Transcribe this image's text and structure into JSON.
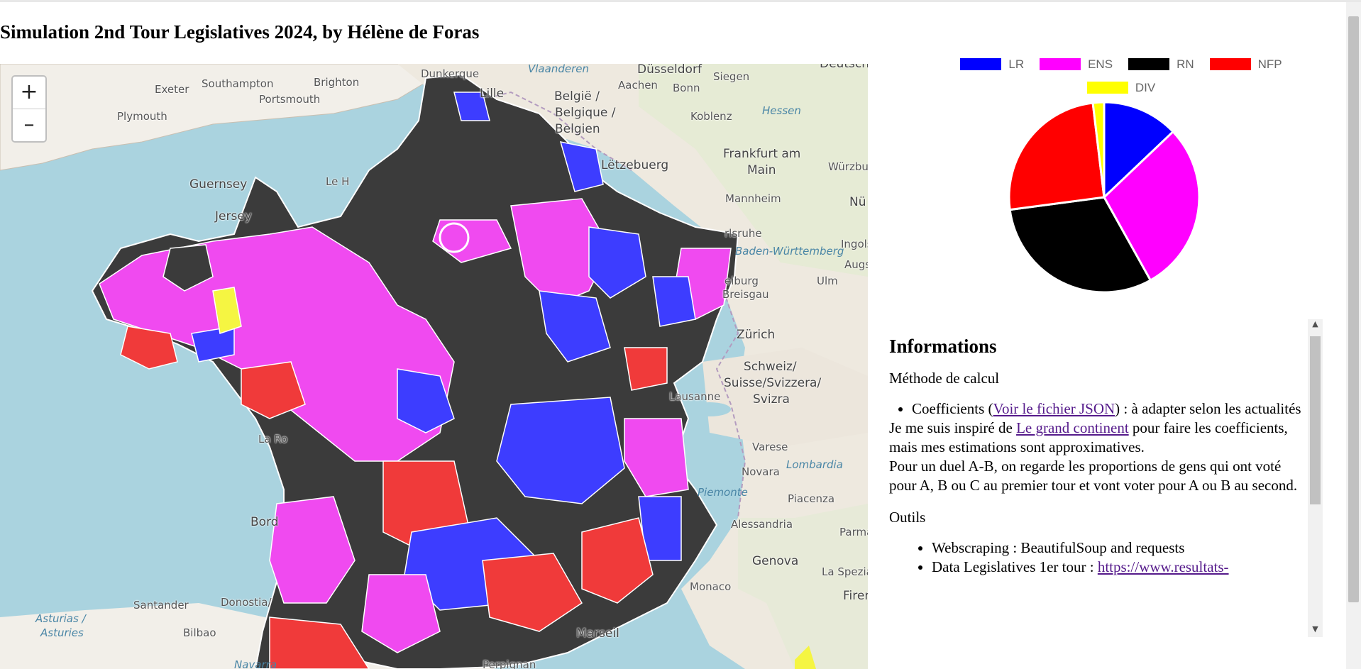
{
  "page": {
    "title": "Simulation 2nd Tour Legislatives 2024, by Hélène de Foras"
  },
  "map": {
    "zoom_in": "+",
    "zoom_out": "–",
    "labels": [
      {
        "id": "vlaanderen",
        "text": "Vlaanderen"
      },
      {
        "id": "dusseldorf",
        "text": "Düsseldorf"
      },
      {
        "id": "deutschland",
        "text": "Deutsch"
      },
      {
        "id": "exeter",
        "text": "Exeter"
      },
      {
        "id": "southampton",
        "text": "Southampton"
      },
      {
        "id": "brighton",
        "text": "Brighton"
      },
      {
        "id": "dunkerque",
        "text": "Dunkerque"
      },
      {
        "id": "lille",
        "text": "Lille"
      },
      {
        "id": "belgie",
        "text": "België /"
      },
      {
        "id": "belgique",
        "text": "Belgique /"
      },
      {
        "id": "belgien",
        "text": "Belgien"
      },
      {
        "id": "aachen",
        "text": "Aachen"
      },
      {
        "id": "bonn",
        "text": "Bonn"
      },
      {
        "id": "siegen",
        "text": "Siegen"
      },
      {
        "id": "portsmouth",
        "text": "Portsmouth"
      },
      {
        "id": "plymouth",
        "text": "Plymouth"
      },
      {
        "id": "koblenz",
        "text": "Koblenz"
      },
      {
        "id": "hessen",
        "text": "Hessen"
      },
      {
        "id": "letzebuerg",
        "text": "Lëtzebuerg"
      },
      {
        "id": "frankfurt1",
        "text": "Frankfurt am"
      },
      {
        "id": "frankfurt2",
        "text": "Main"
      },
      {
        "id": "wurzburg",
        "text": "Würzburg"
      },
      {
        "id": "guernsey",
        "text": "Guernsey"
      },
      {
        "id": "lehavre",
        "text": "Le H"
      },
      {
        "id": "jersey",
        "text": "Jersey"
      },
      {
        "id": "mannheim",
        "text": "Mannheim"
      },
      {
        "id": "nu",
        "text": "Nü"
      },
      {
        "id": "karlsruhe",
        "text": "rlsruhe"
      },
      {
        "id": "badenw",
        "text": "Baden-Württemberg"
      },
      {
        "id": "ingolstadt",
        "text": "Ingols"
      },
      {
        "id": "augsburg",
        "text": "Augs"
      },
      {
        "id": "freiburg1",
        "text": "eiburg"
      },
      {
        "id": "freiburg2",
        "text": "Breisgau"
      },
      {
        "id": "ulm",
        "text": "Ulm"
      },
      {
        "id": "zurich",
        "text": "Zürich"
      },
      {
        "id": "schweiz1",
        "text": "Schweiz/"
      },
      {
        "id": "schweiz2",
        "text": "Suisse/Svizzera/"
      },
      {
        "id": "schweiz3",
        "text": "Svizra"
      },
      {
        "id": "lausanne",
        "text": "Lausanne"
      },
      {
        "id": "varese",
        "text": "Varese"
      },
      {
        "id": "novara",
        "text": "Novara"
      },
      {
        "id": "lombardia",
        "text": "Lombardia"
      },
      {
        "id": "piemonte",
        "text": "Piemonte"
      },
      {
        "id": "piacenza",
        "text": "Piacenza"
      },
      {
        "id": "alessandria",
        "text": "Alessandria"
      },
      {
        "id": "parma",
        "text": "Parma"
      },
      {
        "id": "larochelle",
        "text": "La Ro"
      },
      {
        "id": "bordeaux",
        "text": "Bord"
      },
      {
        "id": "genova",
        "text": "Genova"
      },
      {
        "id": "laspezia",
        "text": "La Spezia"
      },
      {
        "id": "firenze",
        "text": "Firen"
      },
      {
        "id": "monaco",
        "text": "Monaco"
      },
      {
        "id": "marseille",
        "text": "Marseil"
      },
      {
        "id": "santander",
        "text": "Santander"
      },
      {
        "id": "donostia",
        "text": "Donostia/"
      },
      {
        "id": "asturias1",
        "text": "Asturias /"
      },
      {
        "id": "asturias2",
        "text": "Asturies"
      },
      {
        "id": "bilbao",
        "text": "Bilbao"
      },
      {
        "id": "navarra",
        "text": "Navarra"
      },
      {
        "id": "perpignan",
        "text": "Perpignan"
      }
    ]
  },
  "chart_data": {
    "type": "pie",
    "legend_placement": "top",
    "categories": [
      "LR",
      "ENS",
      "RN",
      "NFP",
      "DIV"
    ],
    "values": [
      12.9,
      29.0,
      31.0,
      25.2,
      1.9
    ],
    "colors": [
      "#0000ff",
      "#ff00ff",
      "#000000",
      "#ff0000",
      "#ffff00"
    ]
  },
  "info": {
    "heading": "Informations",
    "method_title": "Méthode de calcul",
    "coef_prefix": "Coefficients (",
    "coef_link": "Voir le fichier JSON",
    "coef_suffix": ") : à adapter selon les actualités",
    "inspired_prefix": "Je me suis inspiré de ",
    "inspired_link": "Le grand continent",
    "inspired_suffix": " pour faire les coefficients, mais mes estimations sont approximatives.",
    "duel_text": "Pour un duel A-B, on regarde les proportions de gens qui ont voté pour A, B ou C au premier tour et vont voter pour A ou B au second.",
    "tools_title": "Outils",
    "tool1": "Webscraping : BeautifulSoup and requests",
    "tool2_prefix": "Data Legislatives 1er tour : ",
    "tool2_link": "https://www.resultats-"
  },
  "colors": {
    "lr": "#3d3dff",
    "ens": "#f04af0",
    "rn": "#3b3b3b",
    "nfp": "#f03a3a",
    "div": "#f5f542",
    "link": "#551a8b"
  }
}
